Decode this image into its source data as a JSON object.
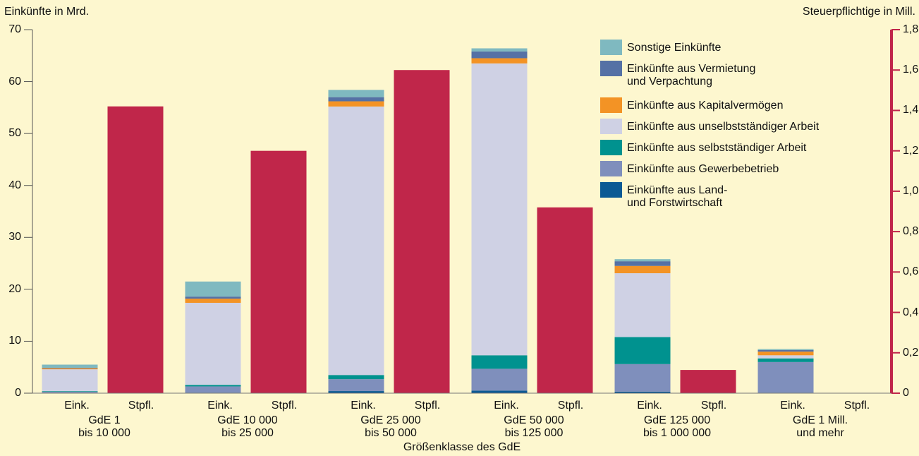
{
  "chart_data": {
    "type": "stacked_bar_dual",
    "ylabel": "Einkünfte in Mrd.",
    "y2label": "Steuerpflichtige in Mill.",
    "xlabel": "Größenklasse des GdE",
    "stack_label": "Eink.",
    "categories": [
      "GdE 1\nbis 10 000",
      "GdE 10 000\nbis 25 000",
      "GdE 25 000\nbis 50 000",
      "GdE 50 000\nbis 125 000",
      "GdE 125 000\nbis 1 000 000",
      "GdE 1 Mill.\nund mehr"
    ],
    "series": [
      {
        "name": "Einkünfte aus Land-\nund Forstwirtschaft",
        "color": "#0b5a94",
        "values": [
          0.1,
          0.1,
          0.4,
          0.5,
          0.3,
          0.1
        ]
      },
      {
        "name": "Einkünfte aus Gewerbebetrieb",
        "color": "#7f8fbc",
        "values": [
          0.2,
          1.2,
          2.3,
          4.2,
          5.3,
          5.9
        ]
      },
      {
        "name": "Einkünfte aus selbstständiger Arbeit",
        "color": "#00928f",
        "values": [
          0.1,
          0.3,
          0.8,
          2.6,
          5.2,
          0.7
        ]
      },
      {
        "name": "Einkünfte aus unselbstständiger Arbeit",
        "color": "#cfd1e4",
        "values": [
          4.2,
          15.8,
          51.7,
          56.2,
          12.3,
          0.6
        ]
      },
      {
        "name": "Einkünfte aus Kapitalvermögen",
        "color": "#f39325",
        "values": [
          0.2,
          0.8,
          1.0,
          1.0,
          1.4,
          0.7
        ]
      },
      {
        "name": "Einkünfte aus Vermietung\nund Verpachtung",
        "color": "#5571a5",
        "values": [
          0.1,
          0.4,
          0.8,
          1.3,
          0.9,
          0.3
        ]
      },
      {
        "name": "Sonstige Einkünfte",
        "color": "#7fb9c0",
        "values": [
          0.6,
          2.9,
          1.4,
          0.6,
          0.4,
          0.2
        ]
      },
      {
        "name": "Stpfl.",
        "color": "#c0264a",
        "axis": "y2",
        "values": [
          1.42,
          1.2,
          1.6,
          0.92,
          0.115,
          0
        ]
      }
    ],
    "ylim": [
      0,
      70
    ],
    "yticks": [
      0,
      10,
      20,
      30,
      40,
      50,
      60,
      70
    ],
    "y2lim": [
      0,
      1.8
    ],
    "y2ticks": [
      0,
      {
        "value": 0.2,
        "label": "0,2"
      },
      {
        "value": 0.4,
        "label": "0,4"
      },
      {
        "value": 0.6,
        "label": "0,6"
      },
      {
        "value": 0.8,
        "label": "0,8"
      },
      {
        "value": 1.0,
        "label": "1,0"
      },
      {
        "value": 1.2,
        "label": "1,2"
      },
      {
        "value": 1.4,
        "label": "1,4"
      },
      {
        "value": 1.6,
        "label": "1,6"
      },
      {
        "value": 1.8,
        "label": "1,8"
      }
    ],
    "legend": "upper right"
  }
}
